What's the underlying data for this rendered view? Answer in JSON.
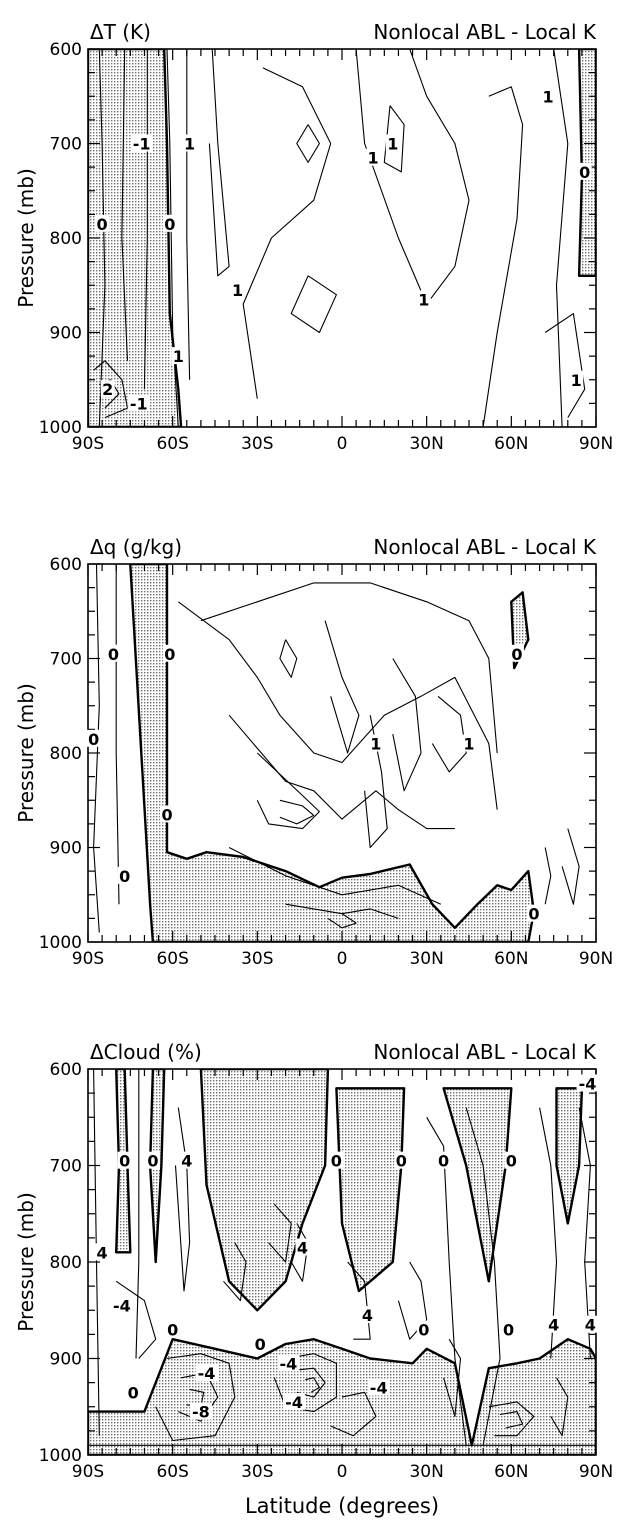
{
  "figure": {
    "xlabel": "Latitude (degrees)",
    "ylabel": "Pressure (mb)",
    "x_ticks": [
      "90S",
      "60S",
      "30S",
      "0",
      "30N",
      "60N",
      "90N"
    ],
    "y_ticks": [
      "600",
      "700",
      "800",
      "900",
      "1000"
    ],
    "shading_color": "#b9b9b9"
  },
  "chart_data": [
    {
      "type": "contour",
      "title": "ΔT (K)",
      "subtitle": "Nonlocal ABL - Local K",
      "xlim": [
        -90,
        90
      ],
      "ylim": [
        1000,
        600
      ],
      "shaded": "negative values",
      "contour_labels": [
        {
          "text": "0",
          "lat": -85,
          "p": 785
        },
        {
          "text": "0",
          "lat": -61,
          "p": 785
        },
        {
          "text": "-1",
          "lat": -71,
          "p": 700
        },
        {
          "text": "1",
          "lat": -54,
          "p": 700
        },
        {
          "text": "2",
          "lat": -83,
          "p": 960
        },
        {
          "text": "-1",
          "lat": -72,
          "p": 975
        },
        {
          "text": "1",
          "lat": -58,
          "p": 925
        },
        {
          "text": "1",
          "lat": -37,
          "p": 855
        },
        {
          "text": "1",
          "lat": 11,
          "p": 715
        },
        {
          "text": "1",
          "lat": 18,
          "p": 700
        },
        {
          "text": "1",
          "lat": 29,
          "p": 865
        },
        {
          "text": "1",
          "lat": 73,
          "p": 650
        },
        {
          "text": "0",
          "lat": 86,
          "p": 730
        },
        {
          "text": "1",
          "lat": 83,
          "p": 950
        }
      ]
    },
    {
      "type": "contour",
      "title": "Δq (g/kg)",
      "subtitle": "Nonlocal ABL - Local K",
      "xlim": [
        -90,
        90
      ],
      "ylim": [
        1000,
        600
      ],
      "shaded": "negative values",
      "contour_labels": [
        {
          "text": "0",
          "lat": -81,
          "p": 695
        },
        {
          "text": "0",
          "lat": -88,
          "p": 785
        },
        {
          "text": "0",
          "lat": -61,
          "p": 695
        },
        {
          "text": "0",
          "lat": -62,
          "p": 865
        },
        {
          "text": "0",
          "lat": -77,
          "p": 930
        },
        {
          "text": "1",
          "lat": 12,
          "p": 790
        },
        {
          "text": "1",
          "lat": 45,
          "p": 790
        },
        {
          "text": "0",
          "lat": 62,
          "p": 695
        },
        {
          "text": "0",
          "lat": 68,
          "p": 970
        }
      ]
    },
    {
      "type": "contour",
      "title": "ΔCloud (%)",
      "subtitle": "Nonlocal ABL - Local K",
      "xlim": [
        -90,
        90
      ],
      "ylim": [
        1000,
        600
      ],
      "shaded": "negative values",
      "contour_labels": [
        {
          "text": "0",
          "lat": -77,
          "p": 695
        },
        {
          "text": "0",
          "lat": -67,
          "p": 695
        },
        {
          "text": "4",
          "lat": -55,
          "p": 695
        },
        {
          "text": "4",
          "lat": -85,
          "p": 790
        },
        {
          "text": "-4",
          "lat": -78,
          "p": 845
        },
        {
          "text": "0",
          "lat": -60,
          "p": 870
        },
        {
          "text": "0",
          "lat": -74,
          "p": 935
        },
        {
          "text": "-4",
          "lat": -48,
          "p": 915
        },
        {
          "text": "-8",
          "lat": -50,
          "p": 955
        },
        {
          "text": "-4",
          "lat": -19,
          "p": 905
        },
        {
          "text": "4",
          "lat": -14,
          "p": 785
        },
        {
          "text": "0",
          "lat": -29,
          "p": 885
        },
        {
          "text": "-4",
          "lat": -17,
          "p": 945
        },
        {
          "text": "0",
          "lat": -2,
          "p": 695
        },
        {
          "text": "4",
          "lat": 9,
          "p": 855
        },
        {
          "text": "-4",
          "lat": 13,
          "p": 930
        },
        {
          "text": "0",
          "lat": 21,
          "p": 695
        },
        {
          "text": "0",
          "lat": 36,
          "p": 695
        },
        {
          "text": "0",
          "lat": 29,
          "p": 870
        },
        {
          "text": "0",
          "lat": 60,
          "p": 695
        },
        {
          "text": "0",
          "lat": 59,
          "p": 870
        },
        {
          "text": "4",
          "lat": 75,
          "p": 865
        },
        {
          "text": "4",
          "lat": 88,
          "p": 865
        },
        {
          "text": "-4",
          "lat": 87,
          "p": 615
        }
      ]
    }
  ]
}
